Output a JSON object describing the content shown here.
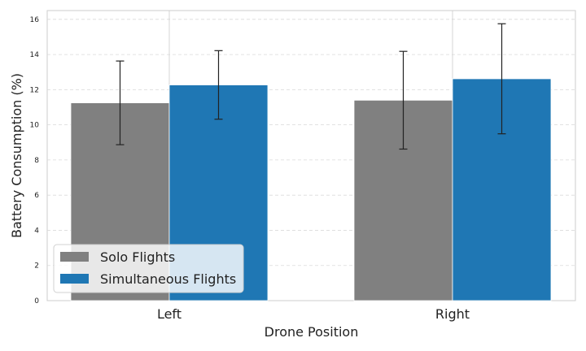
{
  "chart_data": {
    "type": "bar",
    "title": "",
    "xlabel": "Drone Position",
    "ylabel": "Battery Consumption (%)",
    "categories": [
      "Left",
      "Right"
    ],
    "ylim": [
      0,
      16.5
    ],
    "yticks": [
      0,
      2,
      4,
      6,
      8,
      10,
      12,
      14,
      16
    ],
    "grid": true,
    "legend_position": "lower-left",
    "series": [
      {
        "name": "Solo Flights",
        "color": "#808080",
        "values": [
          11.25,
          11.4
        ],
        "errors": [
          2.38,
          2.78
        ]
      },
      {
        "name": "Simultaneous Flights",
        "color": "#1f77b4",
        "values": [
          12.27,
          12.62
        ],
        "errors": [
          1.95,
          3.13
        ]
      }
    ]
  }
}
